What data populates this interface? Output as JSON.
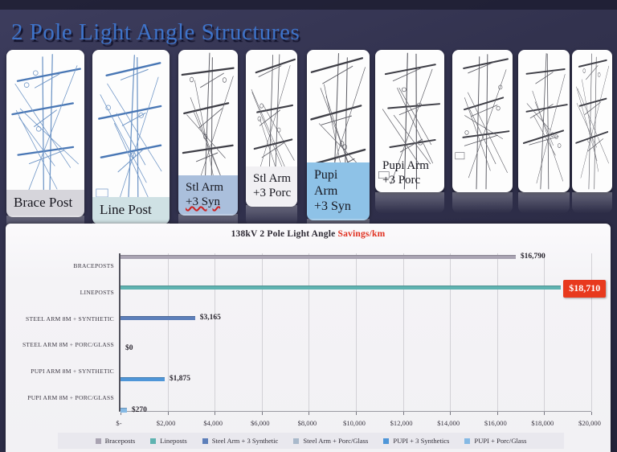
{
  "slide": {
    "title": "2 Pole Light Angle Structures",
    "title_color": "#3e73c9",
    "background_color": "#2e2e4a"
  },
  "thumbnails": [
    {
      "name": "brace-post",
      "label_lines": [
        "Brace Post"
      ],
      "label_bg": "#d6d5db",
      "sketch": "blue"
    },
    {
      "name": "line-post",
      "label_lines": [
        "Line Post"
      ],
      "label_bg": "#cfe1e4",
      "sketch": "blue"
    },
    {
      "name": "stl-arm-3-syn",
      "label_lines": [
        "Stl Arm",
        "+3 Syn"
      ],
      "label_bg": "#aabfdc",
      "sketch": "gray",
      "wavy_line": 1
    },
    {
      "name": "stl-arm-3-porc",
      "label_lines": [
        "Stl Arm",
        "+3 Porc"
      ],
      "label_bg": "#f1f0f3",
      "sketch": "gray"
    },
    {
      "name": "pupi-arm-3-syn",
      "label_lines": [
        "Pupi",
        "Arm",
        "+3 Syn"
      ],
      "label_bg": "#8ec2e7",
      "sketch": "gray"
    },
    {
      "name": "pupi-arm-3-porc",
      "label_lines": [
        "Pupi Arm",
        "+3 Porc"
      ],
      "label_bg": "",
      "sketch": "gray"
    },
    {
      "name": "unlabeled-structure-7",
      "label_lines": [],
      "label_bg": "",
      "sketch": "gray"
    },
    {
      "name": "unlabeled-structure-8",
      "label_lines": [],
      "label_bg": "",
      "sketch": "gray"
    },
    {
      "name": "unlabeled-structure-9",
      "label_lines": [],
      "label_bg": "",
      "sketch": "gray"
    }
  ],
  "chart_data": {
    "type": "bar",
    "orientation": "horizontal",
    "title_main": "138kV 2 Pole Light Angle ",
    "title_highlight": "Savings/km",
    "title_highlight_color": "#e03020",
    "categories": [
      "BRACEPOSTS",
      "LINEPOSTS",
      "STEEL ARM 8M + SYNTHETIC",
      "STEEL ARM 8M + PORC/GLASS",
      "PUPI ARM 8M + SYNTHETIC",
      "PUPI ARM 8M + PORC/GLASS"
    ],
    "values": [
      16790,
      18710,
      3165,
      0,
      1875,
      270
    ],
    "value_labels": [
      "$16,790",
      "$18,710",
      "$3,165",
      "$0",
      "$1,875",
      "$270"
    ],
    "highlighted_value_index": 1,
    "highlight_box_color": "#e8391d",
    "bar_colors": [
      "#a9a3b2",
      "#5fb3b1",
      "#5d7fba",
      "#a9b9cb",
      "#4f96d8",
      "#85b9e4"
    ],
    "xlim": [
      0,
      20000
    ],
    "x_tick_step": 2000,
    "x_tick_labels": [
      "$-",
      "$2,000",
      "$4,000",
      "$6,000",
      "$8,000",
      "$10,000",
      "$12,000",
      "$14,000",
      "$16,000",
      "$18,000",
      "$20,000"
    ],
    "grid": true,
    "legend_position": "bottom",
    "legend": [
      {
        "label": "Braceposts",
        "color": "#a9a3b2"
      },
      {
        "label": "Lineposts",
        "color": "#5fb3b1"
      },
      {
        "label": "Steel Arm + 3 Synthetic",
        "color": "#5d7fba"
      },
      {
        "label": "Steel Arm + Porc/Glass",
        "color": "#a9b9cb"
      },
      {
        "label": "PUPI + 3 Synthetics",
        "color": "#4f96d8"
      },
      {
        "label": "PUPI + Porc/Glass",
        "color": "#85b9e4"
      }
    ]
  }
}
